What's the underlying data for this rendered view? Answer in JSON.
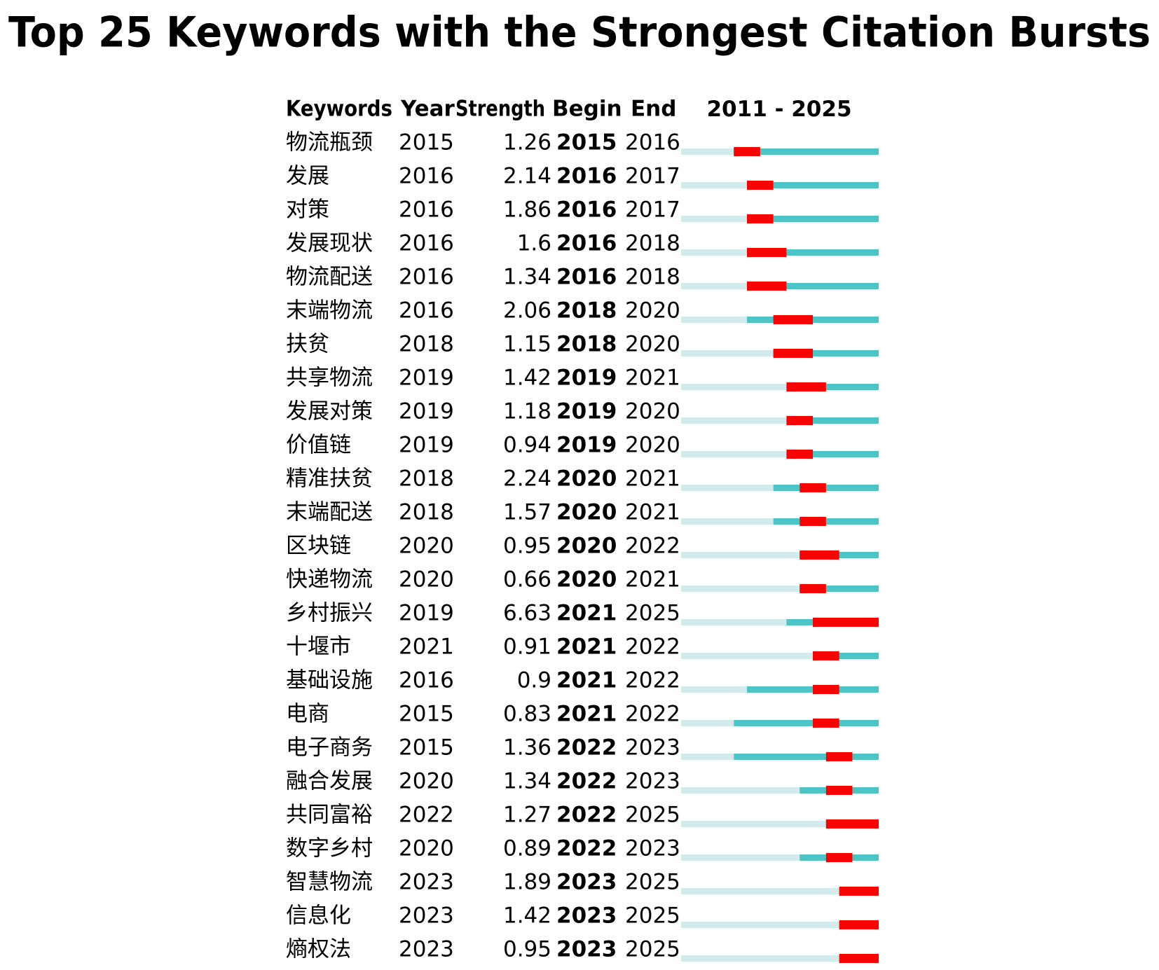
{
  "title": "Top 25 Keywords with the Strongest Citation Bursts",
  "header": {
    "keywords": "Keywords",
    "year": "Year",
    "strength": "Strength",
    "begin": "Begin",
    "end": "End",
    "range": {
      "start": 2011,
      "separator": "-",
      "end": 2025
    }
  },
  "colors": {
    "before": "#d2ebec",
    "after": "#4dc4c6",
    "burst": "#ff0000"
  },
  "rows": [
    {
      "keyword": "物流瓶颈",
      "year": 2015,
      "strength": 1.26,
      "begin": 2015,
      "end": 2016
    },
    {
      "keyword": "发展",
      "year": 2016,
      "strength": 2.14,
      "begin": 2016,
      "end": 2017
    },
    {
      "keyword": "对策",
      "year": 2016,
      "strength": 1.86,
      "begin": 2016,
      "end": 2017
    },
    {
      "keyword": "发展现状",
      "year": 2016,
      "strength": 1.6,
      "begin": 2016,
      "end": 2018
    },
    {
      "keyword": "物流配送",
      "year": 2016,
      "strength": 1.34,
      "begin": 2016,
      "end": 2018
    },
    {
      "keyword": "末端物流",
      "year": 2016,
      "strength": 2.06,
      "begin": 2018,
      "end": 2020
    },
    {
      "keyword": "扶贫",
      "year": 2018,
      "strength": 1.15,
      "begin": 2018,
      "end": 2020
    },
    {
      "keyword": "共享物流",
      "year": 2019,
      "strength": 1.42,
      "begin": 2019,
      "end": 2021
    },
    {
      "keyword": "发展对策",
      "year": 2019,
      "strength": 1.18,
      "begin": 2019,
      "end": 2020
    },
    {
      "keyword": "价值链",
      "year": 2019,
      "strength": 0.94,
      "begin": 2019,
      "end": 2020
    },
    {
      "keyword": "精准扶贫",
      "year": 2018,
      "strength": 2.24,
      "begin": 2020,
      "end": 2021
    },
    {
      "keyword": "末端配送",
      "year": 2018,
      "strength": 1.57,
      "begin": 2020,
      "end": 2021
    },
    {
      "keyword": "区块链",
      "year": 2020,
      "strength": 0.95,
      "begin": 2020,
      "end": 2022
    },
    {
      "keyword": "快递物流",
      "year": 2020,
      "strength": 0.66,
      "begin": 2020,
      "end": 2021
    },
    {
      "keyword": "乡村振兴",
      "year": 2019,
      "strength": 6.63,
      "begin": 2021,
      "end": 2025
    },
    {
      "keyword": "十堰市",
      "year": 2021,
      "strength": 0.91,
      "begin": 2021,
      "end": 2022
    },
    {
      "keyword": "基础设施",
      "year": 2016,
      "strength": 0.9,
      "begin": 2021,
      "end": 2022
    },
    {
      "keyword": "电商",
      "year": 2015,
      "strength": 0.83,
      "begin": 2021,
      "end": 2022
    },
    {
      "keyword": "电子商务",
      "year": 2015,
      "strength": 1.36,
      "begin": 2022,
      "end": 2023
    },
    {
      "keyword": "融合发展",
      "year": 2020,
      "strength": 1.34,
      "begin": 2022,
      "end": 2023
    },
    {
      "keyword": "共同富裕",
      "year": 2022,
      "strength": 1.27,
      "begin": 2022,
      "end": 2025
    },
    {
      "keyword": "数字乡村",
      "year": 2020,
      "strength": 0.89,
      "begin": 2022,
      "end": 2023
    },
    {
      "keyword": "智慧物流",
      "year": 2023,
      "strength": 1.89,
      "begin": 2023,
      "end": 2025
    },
    {
      "keyword": "信息化",
      "year": 2023,
      "strength": 1.42,
      "begin": 2023,
      "end": 2025
    },
    {
      "keyword": "熵权法",
      "year": 2023,
      "strength": 0.95,
      "begin": 2023,
      "end": 2025
    }
  ]
}
